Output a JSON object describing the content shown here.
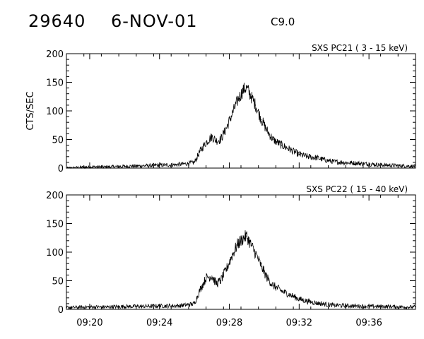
{
  "header": {
    "event_id": "29640",
    "date": "6-NOV-01",
    "flare_class": "C9.0"
  },
  "chart_data": [
    {
      "type": "line",
      "panel_label": "SXS PC21  (  3 - 15 keV)",
      "ylabel": "CTS/SEC",
      "xlabel": "",
      "ylim": [
        0,
        200
      ],
      "yticks": [
        0,
        50,
        100,
        150,
        200
      ],
      "xlim": [
        "09:18:40",
        "09:38:40"
      ],
      "xticks": [
        "09:20",
        "09:24",
        "09:28",
        "09:32",
        "09:36"
      ],
      "series": [
        {
          "x": [
            "09:18:40",
            "09:20:00",
            "09:21:00",
            "09:22:00",
            "09:23:00",
            "09:24:00",
            "09:25:00",
            "09:25:40",
            "09:26:00",
            "09:26:20",
            "09:26:40",
            "09:27:00",
            "09:27:15",
            "09:27:30",
            "09:27:50",
            "09:28:10",
            "09:28:30",
            "09:28:50",
            "09:29:00",
            "09:29:15",
            "09:29:30",
            "09:29:50",
            "09:30:10",
            "09:30:30",
            "09:31:00",
            "09:31:30",
            "09:32:00",
            "09:32:30",
            "09:33:00",
            "09:33:30",
            "09:34:00",
            "09:35:00",
            "09:36:00",
            "09:37:00",
            "09:38:00",
            "09:38:40"
          ],
          "values": [
            0,
            2,
            2,
            3,
            4,
            5,
            6,
            8,
            10,
            30,
            45,
            55,
            48,
            50,
            70,
            95,
            120,
            138,
            140,
            125,
            110,
            85,
            65,
            50,
            40,
            32,
            24,
            20,
            18,
            14,
            11,
            9,
            7,
            5,
            4,
            3
          ]
        }
      ]
    },
    {
      "type": "line",
      "panel_label": "SXS PC22  ( 15 - 40 keV)",
      "ylabel": "",
      "xlabel": "",
      "ylim": [
        0,
        200
      ],
      "yticks": [
        0,
        50,
        100,
        150,
        200
      ],
      "xlim": [
        "09:18:40",
        "09:38:40"
      ],
      "xticks": [
        "09:20",
        "09:24",
        "09:28",
        "09:32",
        "09:36"
      ],
      "series": [
        {
          "x": [
            "09:18:40",
            "09:20:00",
            "09:21:00",
            "09:22:00",
            "09:23:00",
            "09:24:00",
            "09:25:00",
            "09:25:40",
            "09:26:00",
            "09:26:20",
            "09:26:40",
            "09:27:00",
            "09:27:15",
            "09:27:30",
            "09:27:50",
            "09:28:10",
            "09:28:30",
            "09:28:50",
            "09:29:00",
            "09:29:15",
            "09:29:30",
            "09:29:50",
            "09:30:10",
            "09:30:30",
            "09:31:00",
            "09:31:30",
            "09:32:00",
            "09:32:30",
            "09:33:00",
            "09:33:30",
            "09:34:00",
            "09:35:00",
            "09:36:00",
            "09:37:00",
            "09:38:00",
            "09:38:40"
          ],
          "values": [
            3,
            4,
            4,
            5,
            5,
            6,
            6,
            8,
            10,
            35,
            55,
            58,
            45,
            50,
            70,
            95,
            115,
            125,
            128,
            112,
            98,
            75,
            55,
            42,
            32,
            25,
            18,
            14,
            11,
            9,
            7,
            6,
            5,
            5,
            4,
            4
          ]
        }
      ]
    }
  ]
}
